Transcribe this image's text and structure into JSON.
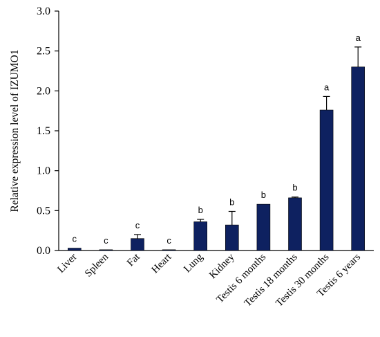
{
  "chart_data": {
    "type": "bar",
    "categories": [
      "Liver",
      "Spleen",
      "Fat",
      "Heart",
      "Lung",
      "Kidney",
      "Testis 6 months",
      "Testis 18 months",
      "Testis 30 months",
      "Testis 6 years"
    ],
    "values": [
      0.03,
      0.01,
      0.15,
      0.01,
      0.36,
      0.32,
      0.58,
      0.66,
      1.76,
      2.3
    ],
    "error_upper": [
      0.0,
      0.0,
      0.05,
      0.0,
      0.03,
      0.17,
      0.0,
      0.01,
      0.17,
      0.25
    ],
    "significance_labels": [
      "c",
      "c",
      "c",
      "c",
      "b",
      "b",
      "b",
      "b",
      "a",
      "a"
    ],
    "ylabel": "Relative expression level of  IZUMO1",
    "xlabel": "",
    "title": "",
    "ylim": [
      0,
      3.0
    ],
    "yticks": [
      "0.0",
      "0.5",
      "1.0",
      "1.5",
      "2.0",
      "2.5",
      "3.0"
    ],
    "grid": false,
    "bar_color": "#0e2160"
  }
}
